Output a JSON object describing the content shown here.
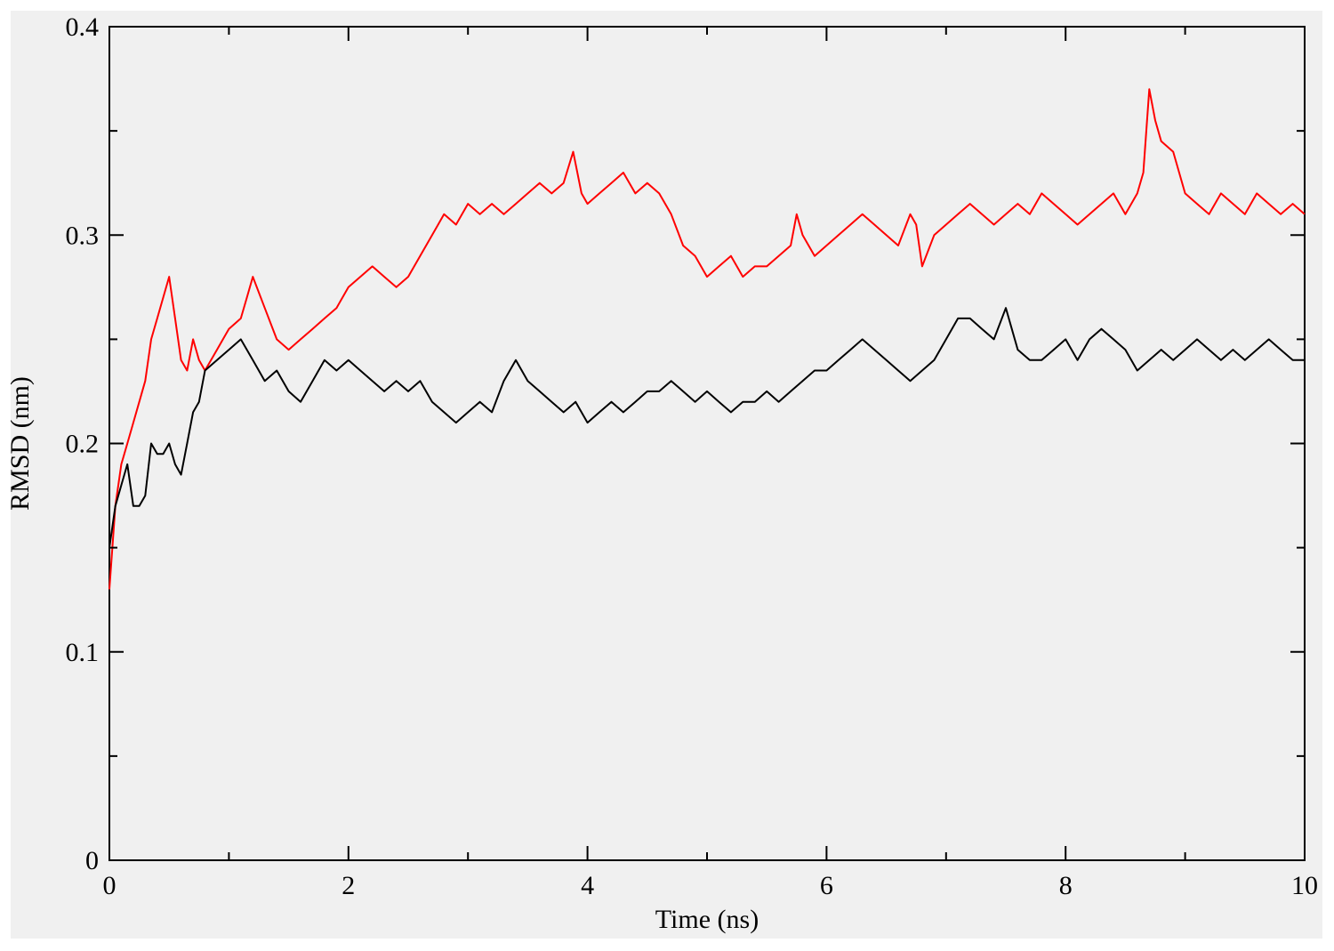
{
  "chart_data": {
    "type": "line",
    "xlabel": "Time (ns)",
    "ylabel": "RMSD (nm)",
    "xlim": [
      0,
      10
    ],
    "ylim": [
      0,
      0.4
    ],
    "x_ticks": [
      0,
      2,
      4,
      6,
      8,
      10
    ],
    "x_tick_labels": [
      "0",
      "2",
      "4",
      "6",
      "8",
      "10"
    ],
    "x_minor_ticks": [
      1,
      3,
      5,
      7,
      9
    ],
    "y_ticks": [
      0,
      0.1,
      0.2,
      0.3,
      0.4
    ],
    "y_tick_labels": [
      "0",
      "0.1",
      "0.2",
      "0.3",
      "0.4"
    ],
    "y_minor_ticks": [
      0.05,
      0.15,
      0.25,
      0.35
    ],
    "grid": false,
    "legend": "none",
    "background_color": "#f0f0f0",
    "series": [
      {
        "color": "#ff0000",
        "x": [
          0,
          0.05,
          0.1,
          0.15,
          0.2,
          0.25,
          0.3,
          0.35,
          0.4,
          0.45,
          0.5,
          0.55,
          0.6,
          0.65,
          0.7,
          0.75,
          0.8,
          0.9,
          1.0,
          1.1,
          1.15,
          1.2,
          1.3,
          1.4,
          1.5,
          1.6,
          1.7,
          1.8,
          1.9,
          2.0,
          2.1,
          2.2,
          2.3,
          2.4,
          2.5,
          2.6,
          2.7,
          2.8,
          2.9,
          3.0,
          3.1,
          3.2,
          3.3,
          3.4,
          3.5,
          3.6,
          3.7,
          3.8,
          3.88,
          3.95,
          4.0,
          4.1,
          4.2,
          4.3,
          4.4,
          4.5,
          4.6,
          4.7,
          4.8,
          4.9,
          5.0,
          5.1,
          5.2,
          5.3,
          5.4,
          5.5,
          5.6,
          5.7,
          5.75,
          5.8,
          5.9,
          6.0,
          6.1,
          6.2,
          6.3,
          6.4,
          6.5,
          6.6,
          6.7,
          6.75,
          6.8,
          6.9,
          7.0,
          7.1,
          7.2,
          7.3,
          7.4,
          7.5,
          7.6,
          7.7,
          7.8,
          7.9,
          8.0,
          8.1,
          8.2,
          8.3,
          8.4,
          8.5,
          8.6,
          8.65,
          8.7,
          8.75,
          8.8,
          8.9,
          9.0,
          9.1,
          9.2,
          9.3,
          9.4,
          9.5,
          9.6,
          9.7,
          9.8,
          9.9,
          10.0
        ],
        "values": [
          0.13,
          0.17,
          0.19,
          0.2,
          0.21,
          0.22,
          0.23,
          0.25,
          0.26,
          0.27,
          0.28,
          0.26,
          0.24,
          0.235,
          0.25,
          0.24,
          0.235,
          0.245,
          0.255,
          0.26,
          0.27,
          0.28,
          0.265,
          0.25,
          0.245,
          0.25,
          0.255,
          0.26,
          0.265,
          0.275,
          0.28,
          0.285,
          0.28,
          0.275,
          0.28,
          0.29,
          0.3,
          0.31,
          0.305,
          0.315,
          0.31,
          0.315,
          0.31,
          0.315,
          0.32,
          0.325,
          0.32,
          0.325,
          0.34,
          0.32,
          0.315,
          0.32,
          0.325,
          0.33,
          0.32,
          0.325,
          0.32,
          0.31,
          0.295,
          0.29,
          0.28,
          0.285,
          0.29,
          0.28,
          0.285,
          0.285,
          0.29,
          0.295,
          0.31,
          0.3,
          0.29,
          0.295,
          0.3,
          0.305,
          0.31,
          0.305,
          0.3,
          0.295,
          0.31,
          0.305,
          0.285,
          0.3,
          0.305,
          0.31,
          0.315,
          0.31,
          0.305,
          0.31,
          0.315,
          0.31,
          0.32,
          0.315,
          0.31,
          0.305,
          0.31,
          0.315,
          0.32,
          0.31,
          0.32,
          0.33,
          0.37,
          0.355,
          0.345,
          0.34,
          0.32,
          0.315,
          0.31,
          0.32,
          0.315,
          0.31,
          0.32,
          0.315,
          0.31,
          0.315,
          0.31
        ]
      },
      {
        "color": "#000000",
        "x": [
          0,
          0.05,
          0.1,
          0.15,
          0.2,
          0.25,
          0.3,
          0.35,
          0.4,
          0.45,
          0.5,
          0.55,
          0.6,
          0.65,
          0.7,
          0.75,
          0.8,
          0.9,
          1.0,
          1.1,
          1.2,
          1.3,
          1.4,
          1.5,
          1.6,
          1.7,
          1.8,
          1.9,
          2.0,
          2.1,
          2.2,
          2.3,
          2.4,
          2.5,
          2.6,
          2.7,
          2.8,
          2.9,
          3.0,
          3.1,
          3.2,
          3.3,
          3.4,
          3.5,
          3.6,
          3.7,
          3.8,
          3.9,
          4.0,
          4.1,
          4.2,
          4.3,
          4.4,
          4.5,
          4.6,
          4.7,
          4.8,
          4.9,
          5.0,
          5.1,
          5.2,
          5.3,
          5.4,
          5.5,
          5.6,
          5.7,
          5.8,
          5.9,
          6.0,
          6.1,
          6.2,
          6.3,
          6.4,
          6.5,
          6.6,
          6.7,
          6.8,
          6.9,
          7.0,
          7.1,
          7.2,
          7.3,
          7.4,
          7.5,
          7.6,
          7.7,
          7.8,
          7.9,
          8.0,
          8.1,
          8.2,
          8.3,
          8.4,
          8.5,
          8.6,
          8.7,
          8.8,
          8.9,
          9.0,
          9.1,
          9.2,
          9.3,
          9.4,
          9.5,
          9.6,
          9.7,
          9.8,
          9.9,
          10.0
        ],
        "values": [
          0.15,
          0.17,
          0.18,
          0.19,
          0.17,
          0.17,
          0.175,
          0.2,
          0.195,
          0.195,
          0.2,
          0.19,
          0.185,
          0.2,
          0.215,
          0.22,
          0.235,
          0.24,
          0.245,
          0.25,
          0.24,
          0.23,
          0.235,
          0.225,
          0.22,
          0.23,
          0.24,
          0.235,
          0.24,
          0.235,
          0.23,
          0.225,
          0.23,
          0.225,
          0.23,
          0.22,
          0.215,
          0.21,
          0.215,
          0.22,
          0.215,
          0.23,
          0.24,
          0.23,
          0.225,
          0.22,
          0.215,
          0.22,
          0.21,
          0.215,
          0.22,
          0.215,
          0.22,
          0.225,
          0.225,
          0.23,
          0.225,
          0.22,
          0.225,
          0.22,
          0.215,
          0.22,
          0.22,
          0.225,
          0.22,
          0.225,
          0.23,
          0.235,
          0.235,
          0.24,
          0.245,
          0.25,
          0.245,
          0.24,
          0.235,
          0.23,
          0.235,
          0.24,
          0.25,
          0.26,
          0.26,
          0.255,
          0.25,
          0.265,
          0.245,
          0.24,
          0.24,
          0.245,
          0.25,
          0.24,
          0.25,
          0.255,
          0.25,
          0.245,
          0.235,
          0.24,
          0.245,
          0.24,
          0.245,
          0.25,
          0.245,
          0.24,
          0.245,
          0.24,
          0.245,
          0.25,
          0.245,
          0.24,
          0.24
        ]
      }
    ]
  }
}
